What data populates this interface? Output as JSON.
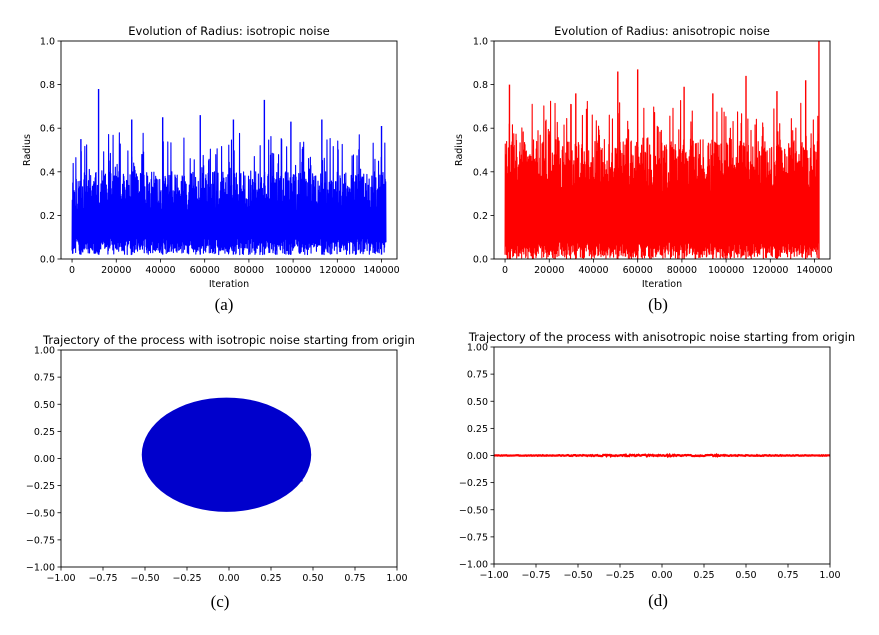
{
  "chart_data": [
    {
      "id": "a",
      "type": "line",
      "title": "Evolution of Radius: isotropic noise",
      "xlabel": "Iteration",
      "ylabel": "Radius",
      "caption": "(a)",
      "color": "#0000ff",
      "xlim": [
        -5000,
        147000
      ],
      "ylim": [
        0.0,
        1.0
      ],
      "xticks": [
        0,
        20000,
        40000,
        60000,
        80000,
        100000,
        120000,
        140000
      ],
      "xticklabels": [
        "0",
        "20000",
        "40000",
        "60000",
        "80000",
        "100000",
        "120000",
        "140000"
      ],
      "yticks": [
        0.0,
        0.2,
        0.4,
        0.6,
        0.8,
        1.0
      ],
      "yticklabels": [
        "0.0",
        "0.2",
        "0.4",
        "0.6",
        "0.8",
        "1.0"
      ],
      "x_range": [
        0,
        142000
      ],
      "band": [
        0.02,
        0.4
      ],
      "peaks": [
        {
          "x": 12000,
          "y": 0.78
        },
        {
          "x": 87000,
          "y": 0.73
        },
        {
          "x": 58000,
          "y": 0.66
        },
        {
          "x": 27000,
          "y": 0.64
        },
        {
          "x": 113000,
          "y": 0.64
        },
        {
          "x": 41000,
          "y": 0.65
        },
        {
          "x": 4000,
          "y": 0.55
        },
        {
          "x": 140000,
          "y": 0.61
        },
        {
          "x": 99000,
          "y": 0.63
        },
        {
          "x": 73000,
          "y": 0.64
        }
      ],
      "series": [
        {
          "values_summary": "noisy radius trace mostly between 0.02 and 0.4, spikes up to ~0.78"
        }
      ]
    },
    {
      "id": "b",
      "type": "line",
      "title": "Evolution of Radius: anisotropic noise",
      "xlabel": "Iteration",
      "ylabel": "Radius",
      "caption": "(b)",
      "color": "#ff0000",
      "xlim": [
        -5000,
        147000
      ],
      "ylim": [
        0.0,
        1.0
      ],
      "xticks": [
        0,
        20000,
        40000,
        60000,
        80000,
        100000,
        120000,
        140000
      ],
      "xticklabels": [
        "0",
        "20000",
        "40000",
        "60000",
        "80000",
        "100000",
        "120000",
        "140000"
      ],
      "yticks": [
        0.0,
        0.2,
        0.4,
        0.6,
        0.8,
        1.0
      ],
      "yticklabels": [
        "0.0",
        "0.2",
        "0.4",
        "0.6",
        "0.8",
        "1.0"
      ],
      "x_range": [
        0,
        142000
      ],
      "band": [
        0.0,
        0.55
      ],
      "peaks": [
        {
          "x": 142000,
          "y": 1.0
        },
        {
          "x": 51000,
          "y": 0.86
        },
        {
          "x": 60000,
          "y": 0.87
        },
        {
          "x": 2000,
          "y": 0.8
        },
        {
          "x": 136000,
          "y": 0.82
        },
        {
          "x": 109000,
          "y": 0.84
        },
        {
          "x": 32000,
          "y": 0.76
        },
        {
          "x": 81000,
          "y": 0.79
        },
        {
          "x": 123000,
          "y": 0.77
        },
        {
          "x": 94000,
          "y": 0.76
        }
      ],
      "series": [
        {
          "values_summary": "noisy radius trace densely filling 0 to ~0.55, spikes up to 1.0"
        }
      ]
    },
    {
      "id": "c",
      "type": "line",
      "title": "Trajectory of the process with isotropic noise starting from origin",
      "caption": "(c)",
      "color": "#0000cc",
      "xlim": [
        -1.0,
        1.0
      ],
      "ylim": [
        -1.0,
        1.0
      ],
      "xticks": [
        -1.0,
        -0.75,
        -0.5,
        -0.25,
        0.0,
        0.25,
        0.5,
        0.75,
        1.0
      ],
      "xticklabels": [
        "−1.00",
        "−0.75",
        "−0.50",
        "−0.25",
        "0.00",
        "0.25",
        "0.50",
        "0.75",
        "1.00"
      ],
      "yticks": [
        -1.0,
        -0.75,
        -0.5,
        -0.25,
        0.0,
        0.25,
        0.5,
        0.75,
        1.0
      ],
      "yticklabels": [
        "−1.00",
        "−0.75",
        "−0.50",
        "−0.25",
        "0.00",
        "0.25",
        "0.50",
        "0.75",
        "1.00"
      ],
      "extent": {
        "x": [
          -0.6,
          0.63
        ],
        "y": [
          -0.62,
          0.73
        ]
      },
      "series": [
        {
          "values_summary": "2D random-walk trajectory centered near origin, radius ~0.55"
        }
      ]
    },
    {
      "id": "d",
      "type": "line",
      "title": "Trajectory of the process with anisotropic noise starting from origin",
      "caption": "(d)",
      "color": "#ff0000",
      "xlim": [
        -1.0,
        1.0
      ],
      "ylim": [
        -1.0,
        1.0
      ],
      "xticks": [
        -1.0,
        -0.75,
        -0.5,
        -0.25,
        0.0,
        0.25,
        0.5,
        0.75,
        1.0
      ],
      "xticklabels": [
        "−1.00",
        "−0.75",
        "−0.50",
        "−0.25",
        "0.00",
        "0.25",
        "0.50",
        "0.75",
        "1.00"
      ],
      "yticks": [
        -1.0,
        -0.75,
        -0.5,
        -0.25,
        0.0,
        0.25,
        0.5,
        0.75,
        1.0
      ],
      "yticklabels": [
        "−1.00",
        "−0.75",
        "−0.50",
        "−0.25",
        "0.00",
        "0.25",
        "0.50",
        "0.75",
        "1.00"
      ],
      "extent": {
        "x": [
          -1.0,
          1.0
        ],
        "y": [
          -0.01,
          0.01
        ]
      },
      "series": [
        {
          "values_summary": "trajectory confined to a thin horizontal line near y = 0 spanning x from -1 to 1"
        }
      ]
    }
  ]
}
